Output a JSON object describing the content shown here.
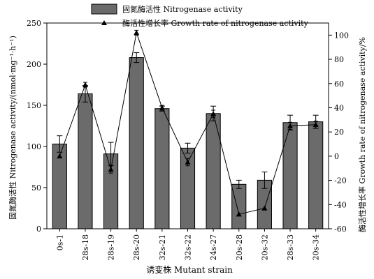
{
  "chart_data": {
    "type": "bar",
    "categories": [
      "0s-1",
      "28s-18",
      "28s-19",
      "28s-20",
      "32s-21",
      "32s-22",
      "24s-27",
      "20s-28",
      "20s-32",
      "28s-33",
      "20s-34"
    ],
    "series": [
      {
        "name": "固氮酶活性 Nitrogenase activity",
        "type": "bar",
        "axis": "left",
        "color": "#6b6b6b",
        "values": [
          103,
          164,
          91,
          208,
          146,
          98,
          140,
          54,
          59,
          129,
          130
        ],
        "errors": [
          10,
          10,
          14,
          6,
          3,
          6,
          9,
          5,
          10,
          9,
          8
        ]
      },
      {
        "name": "酶活性增长率 Growth rate of nitrogenase activity",
        "type": "line",
        "axis": "right",
        "marker": "triangle",
        "values": [
          0,
          59,
          -11,
          102,
          40,
          -5,
          35,
          -48,
          -43,
          25,
          26
        ],
        "errors": [
          0,
          2,
          3,
          2,
          2,
          3,
          3,
          0,
          0,
          3,
          3
        ]
      }
    ],
    "xlabel": "诱变株 Mutant strain",
    "ylabel": "固氮酶活性 Nitrogenase activity/(nmol·mg⁻¹·h⁻¹)",
    "y2label": "酶活性增长率 Growth rate of nitrogenase activity/%",
    "ylim": [
      0,
      250
    ],
    "y2lim": [
      -60,
      110
    ],
    "yticks": [
      0,
      50,
      100,
      150,
      200,
      250
    ],
    "y2ticks": [
      -60,
      -40,
      -20,
      0,
      20,
      40,
      60,
      80,
      100
    ],
    "legend_position": "top"
  }
}
